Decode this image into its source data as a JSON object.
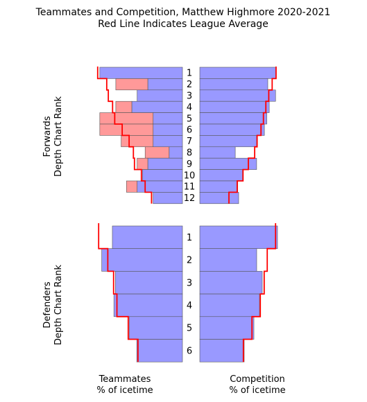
{
  "chart_data": [
    {
      "type": "bar",
      "panel": "Forwards - Teammates",
      "orientation": "horizontal",
      "mirrored": true,
      "categories": [
        "1",
        "2",
        "3",
        "4",
        "5",
        "6",
        "7",
        "8",
        "9",
        "10",
        "11",
        "12"
      ],
      "series": [
        {
          "values": [
            15.5,
            6.5,
            8.5,
            9.5,
            5.5,
            5.5,
            5.5,
            2.5,
            6.5,
            7.5,
            8.5,
            5.5
          ],
          "colors": [
            "#9999ff",
            "#9999ff",
            "#9999ff",
            "#9999ff",
            "#9999ff",
            "#9999ff",
            "#9999ff",
            "#9999ff",
            "#9999ff",
            "#9999ff",
            "#9999ff",
            "#9999ff"
          ]
        },
        {
          "values": [
            0,
            6.0,
            0,
            3.0,
            10.0,
            10.0,
            6.0,
            4.5,
            2.0,
            0,
            2.0,
            0
          ],
          "colors": [
            "#ff9999",
            "#ff9999",
            "#ff9999",
            "#ff9999",
            "#ff9999",
            "#ff9999",
            "#ff9999",
            "#ff9999",
            "#ff9999",
            "#ff9999",
            "#ff9999",
            "#ff9999"
          ]
        }
      ],
      "league_average": [
        15.9,
        14.2,
        13.9,
        13.1,
        12.7,
        11.3,
        10.0,
        9.2,
        9.0,
        7.7,
        7.0,
        5.8
      ],
      "xlim": [
        0,
        16
      ]
    },
    {
      "type": "bar",
      "panel": "Forwards - Competition",
      "orientation": "horizontal",
      "categories": [
        "1",
        "2",
        "3",
        "4",
        "5",
        "6",
        "7",
        "8",
        "9",
        "10",
        "11",
        "12"
      ],
      "series": [
        {
          "values": [
            15.7,
            14.0,
            15.6,
            14.3,
            13.8,
            13.3,
            11.7,
            7.3,
            11.7,
            8.8,
            7.8,
            8.0
          ],
          "colors": [
            "#9999ff",
            "#9999ff",
            "#9999ff",
            "#9999ff",
            "#9999ff",
            "#9999ff",
            "#9999ff",
            "#9999ff",
            "#9999ff",
            "#9999ff",
            "#9999ff",
            "#9999ff"
          ]
        }
      ],
      "league_average": [
        15.7,
        14.9,
        14.2,
        13.6,
        13.1,
        12.6,
        11.8,
        11.3,
        10.0,
        8.9,
        7.7,
        6.0
      ],
      "xlim": [
        0,
        16
      ]
    },
    {
      "type": "bar",
      "panel": "Defenders - Teammates",
      "orientation": "horizontal",
      "mirrored": true,
      "categories": [
        "1",
        "2",
        "3",
        "4",
        "5",
        "6"
      ],
      "series": [
        {
          "values": [
            23.0,
            26.5,
            22.0,
            22.5,
            17.5,
            15.0
          ],
          "colors": [
            "#9999ff",
            "#9999ff",
            "#9999ff",
            "#9999ff",
            "#9999ff",
            "#9999ff"
          ]
        }
      ],
      "league_average": [
        27.5,
        24.5,
        22.6,
        21.5,
        17.8,
        14.6
      ],
      "xlim": [
        0,
        28
      ]
    },
    {
      "type": "bar",
      "panel": "Defenders - Competition",
      "orientation": "horizontal",
      "categories": [
        "1",
        "2",
        "3",
        "4",
        "5",
        "6"
      ],
      "series": [
        {
          "values": [
            28.0,
            20.5,
            22.5,
            21.5,
            19.5,
            16.0
          ],
          "colors": [
            "#9999ff",
            "#9999ff",
            "#9999ff",
            "#9999ff",
            "#9999ff",
            "#9999ff"
          ]
        }
      ],
      "league_average": [
        27.3,
        24.3,
        23.2,
        21.8,
        18.8,
        15.7
      ],
      "xlim": [
        0,
        28
      ]
    }
  ],
  "title": "Teammates and Competition, Matthew Highmore 2020-2021",
  "subtitle": "Red Line Indicates League Average",
  "forwards_ylabel": [
    "Forwards",
    "Depth Chart Rank"
  ],
  "defenders_ylabel": [
    "Defenders",
    "Depth Chart Rank"
  ],
  "teammates_xlabel": [
    "Teammates",
    "% of icetime"
  ],
  "competition_xlabel": [
    "Competition",
    "% of icetime"
  ],
  "colors": {
    "bar": "#9999ff",
    "excess": "#ff9999",
    "line": "#ff0000",
    "edge": "#555555"
  }
}
